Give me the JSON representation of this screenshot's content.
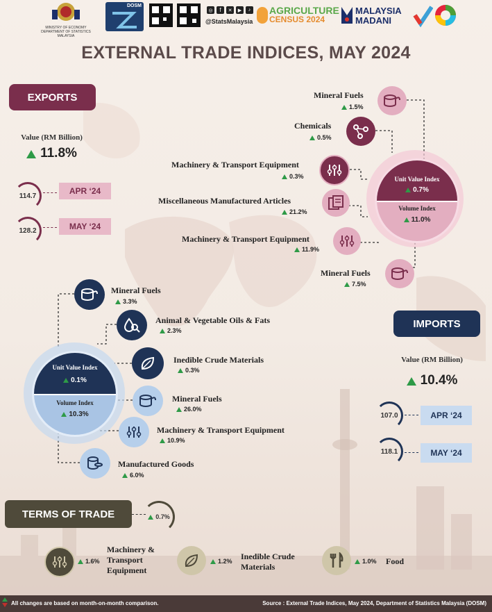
{
  "header": {
    "ministry_line1": "MINISTRY OF ECONOMY",
    "ministry_line2": "DEPARTMENT OF STATISTICS MALAYSIA",
    "dosm_badge": "DOSM",
    "social_handle": "@StatsMalaysia",
    "census_line1": "AGRICULTURE",
    "census_line2": "CENSUS 2024",
    "madani_line1": "MALAYSIA",
    "madani_line2": "MADANI"
  },
  "title": "EXTERNAL TRADE INDICES, MAY 2024",
  "exports": {
    "label": "EXPORTS",
    "value_label": "Value (RM Billion)",
    "value_change": "11.8%",
    "months": [
      {
        "value": "114.7",
        "month": "APR ‘24"
      },
      {
        "value": "128.2",
        "month": "MAY ‘24"
      }
    ],
    "unit_value_items": [
      {
        "name": "Mineral Fuels",
        "pct": "1.5%"
      },
      {
        "name": "Chemicals",
        "pct": "0.5%"
      },
      {
        "name": "Machinery & Transport Equipment",
        "pct": "0.3%"
      }
    ],
    "volume_items": [
      {
        "name": "Miscellaneous Manufactured Articles",
        "pct": "21.2%"
      },
      {
        "name": "Machinery & Transport Equipment",
        "pct": "11.9%"
      },
      {
        "name": "Mineral Fuels",
        "pct": "7.5%"
      }
    ],
    "unit_value_index": {
      "label": "Unit Value Index",
      "pct": "0.7%"
    },
    "volume_index": {
      "label": "Volume Index",
      "pct": "11.0%"
    }
  },
  "imports": {
    "label": "IMPORTS",
    "value_label": "Value (RM Billion)",
    "value_change": "10.4%",
    "months": [
      {
        "value": "107.0",
        "month": "APR ‘24"
      },
      {
        "value": "118.1",
        "month": "MAY ‘24"
      }
    ],
    "unit_value_items": [
      {
        "name": "Mineral Fuels",
        "pct": "3.3%"
      },
      {
        "name": "Animal & Vegetable Oils & Fats",
        "pct": "2.3%"
      },
      {
        "name": "Inedible Crude Materials",
        "pct": "0.3%"
      }
    ],
    "volume_items": [
      {
        "name": "Mineral Fuels",
        "pct": "26.0%"
      },
      {
        "name": "Machinery & Transport Equipment",
        "pct": "10.9%"
      },
      {
        "name": "Manufactured Goods",
        "pct": "6.0%"
      }
    ],
    "unit_value_index": {
      "label": "Unit Value Index",
      "pct": "0.1%"
    },
    "volume_index": {
      "label": "Volume Index",
      "pct": "10.3%"
    }
  },
  "terms_of_trade": {
    "label": "TERMS OF TRADE",
    "pct": "0.7%",
    "items": [
      {
        "name_line1": "Machinery &",
        "name_line2": "Transport",
        "name_line3": "Equipment",
        "pct": "1.6%"
      },
      {
        "name_line1": "Inedible Crude",
        "name_line2": "Materials",
        "pct": "1.2%"
      },
      {
        "name_line1": "Food",
        "pct": "1.0%"
      }
    ]
  },
  "footer": {
    "note": "All changes are based on month-on-month comparison.",
    "source": "Source : External Trade Indices, May 2024, Department of Statistics Malaysia (DOSM)"
  },
  "colors": {
    "exports_dark": "#7a2e4c",
    "exports_light": "#e3aec0",
    "imports_dark": "#1f3356",
    "imports_light": "#a9c4e4",
    "tot_dark": "#4f4a3a",
    "tot_light": "#cfc6a9",
    "up": "#2e9a47",
    "down": "#c0302c"
  },
  "icons": [
    "ministry-crest-icon",
    "qr-code-icon",
    "instagram-icon",
    "facebook-icon",
    "x-icon",
    "youtube-icon",
    "tiktok-icon",
    "sdg-wheel-icon",
    "fuel-barrel-icon",
    "chemical-molecule-icon",
    "machinery-sliders-icon",
    "documents-icon",
    "droplet-magnifier-icon",
    "leaf-icon",
    "coins-stack-icon",
    "fork-knife-icon"
  ]
}
